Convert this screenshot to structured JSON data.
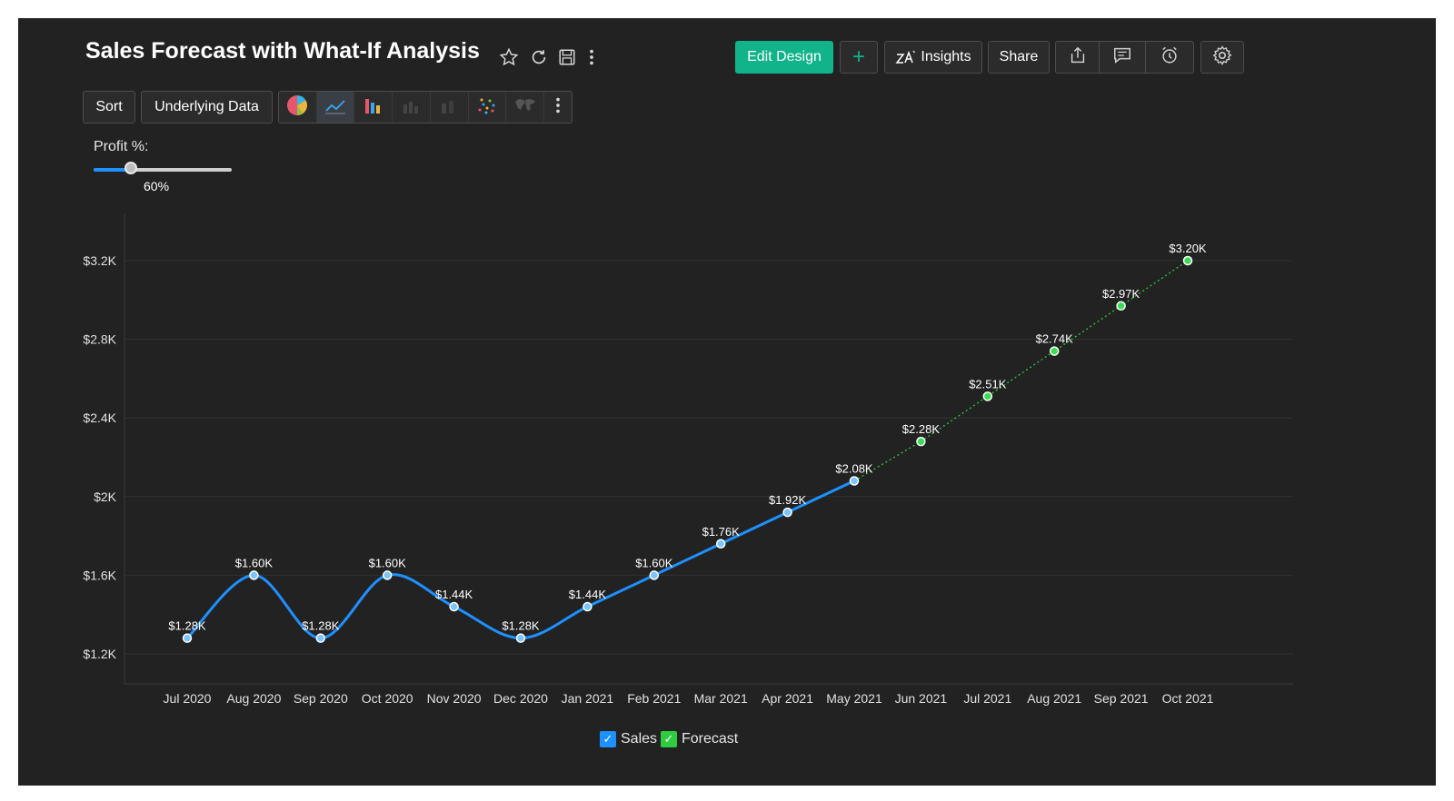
{
  "header": {
    "title": "Sales Forecast with What-If Analysis",
    "edit_design": "Edit Design",
    "add": "+",
    "insights": "Insights",
    "share": "Share"
  },
  "toolbar": {
    "sort": "Sort",
    "underlying_data": "Underlying Data",
    "chart_types": [
      "pie",
      "line",
      "bar",
      "stacked-bar",
      "bubble",
      "scatter",
      "map"
    ],
    "active_chart_type": "line"
  },
  "slider": {
    "label": "Profit %:",
    "value_text": "60%",
    "fraction": 0.27
  },
  "colors": {
    "background": "#222222",
    "accent": "#11b48a",
    "sales": "#1e90ff",
    "forecast": "#2ecc40"
  },
  "chart_data": {
    "type": "line",
    "categories": [
      "Jul 2020",
      "Aug 2020",
      "Sep 2020",
      "Oct 2020",
      "Nov 2020",
      "Dec 2020",
      "Jan 2021",
      "Feb 2021",
      "Mar 2021",
      "Apr 2021",
      "May 2021",
      "Jun 2021",
      "Jul 2021",
      "Aug 2021",
      "Sep 2021",
      "Oct 2021"
    ],
    "series": [
      {
        "name": "Sales",
        "values": [
          1280,
          1600,
          1280,
          1600,
          1440,
          1280,
          1440,
          1600,
          1760,
          1920,
          2080,
          null,
          null,
          null,
          null,
          null
        ],
        "labels": [
          "$1.28K",
          "$1.60K",
          "$1.28K",
          "$1.60K",
          "$1.44K",
          "$1.28K",
          "$1.44K",
          "$1.60K",
          "$1.76K",
          "$1.92K",
          "$2.08K",
          "",
          "",
          "",
          "",
          ""
        ]
      },
      {
        "name": "Forecast",
        "values": [
          null,
          null,
          null,
          null,
          null,
          null,
          null,
          null,
          null,
          null,
          2080,
          2280,
          2510,
          2740,
          2970,
          3200
        ],
        "labels": [
          "",
          "",
          "",
          "",
          "",
          "",
          "",
          "",
          "",
          "",
          "",
          "$2.28K",
          "$2.51K",
          "$2.74K",
          "$2.97K",
          "$3.20K"
        ]
      }
    ],
    "yticks": [
      1200,
      1600,
      2000,
      2400,
      2800,
      3200
    ],
    "ytick_labels": [
      "$1.2K",
      "$1.6K",
      "$2K",
      "$2.4K",
      "$2.8K",
      "$3.2K"
    ],
    "ylim": [
      1050,
      3400
    ],
    "grid": true,
    "legend_position": "bottom-center"
  }
}
